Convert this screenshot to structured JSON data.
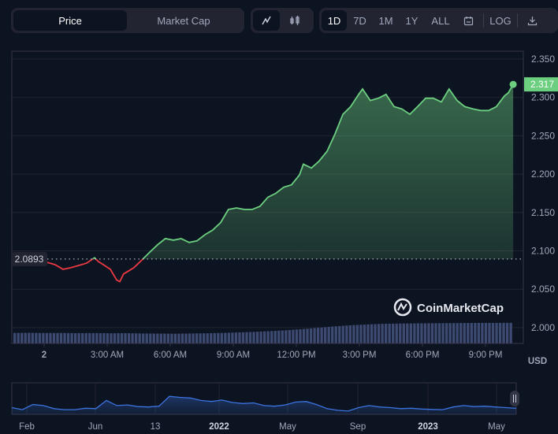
{
  "toolbar": {
    "type_tabs": [
      {
        "label": "Price",
        "active": true
      },
      {
        "label": "Market Cap",
        "active": false
      }
    ],
    "chart_style": [
      {
        "icon": "line-chart-icon",
        "active": true
      },
      {
        "icon": "candlestick-icon",
        "active": false
      }
    ],
    "ranges": [
      {
        "label": "1D",
        "active": true
      },
      {
        "label": "7D"
      },
      {
        "label": "1M"
      },
      {
        "label": "1Y"
      },
      {
        "label": "ALL"
      }
    ],
    "calendar_icon": "calendar-icon",
    "log_label": "LOG",
    "download_icon": "download-icon"
  },
  "watermark": "CoinMarketCap",
  "currency": "USD",
  "colors": {
    "up": "#6ccf80",
    "down": "#ea3943",
    "volume": "#3d4a72",
    "navigator": "#3b73e0",
    "background": "#0d1421"
  },
  "chart_data": {
    "type": "line",
    "baseline": 2.0893,
    "baseline_label": "2.0893",
    "last_label": "2.317",
    "ylim": [
      1.98,
      2.36
    ],
    "yticks": [
      "2.350",
      "2.300",
      "2.250",
      "2.200",
      "2.150",
      "2.100",
      "2.050",
      "2.000"
    ],
    "xticks": [
      "2",
      "3:00 AM",
      "6:00 AM",
      "9:00 AM",
      "12:00 PM",
      "3:00 PM",
      "6:00 PM",
      "9:00 PM"
    ],
    "points": [
      [
        "22:34",
        2.083
      ],
      [
        "22:57",
        2.097
      ],
      [
        "23:24",
        2.088
      ],
      [
        "23:47",
        2.085
      ],
      [
        "00:09",
        2.085
      ],
      [
        "00:31",
        2.082
      ],
      [
        "00:54",
        2.076
      ],
      [
        "01:16",
        2.078
      ],
      [
        "01:39",
        2.081
      ],
      [
        "02:01",
        2.084
      ],
      [
        "02:24",
        2.091
      ],
      [
        "02:35",
        2.086
      ],
      [
        "02:46",
        2.083
      ],
      [
        "03:09",
        2.076
      ],
      [
        "03:27",
        2.062
      ],
      [
        "03:36",
        2.06
      ],
      [
        "03:47",
        2.07
      ],
      [
        "03:58",
        2.073
      ],
      [
        "04:16",
        2.078
      ],
      [
        "04:39",
        2.088
      ],
      [
        "05:01",
        2.098
      ],
      [
        "05:24",
        2.108
      ],
      [
        "05:46",
        2.116
      ],
      [
        "06:09",
        2.114
      ],
      [
        "06:31",
        2.116
      ],
      [
        "06:54",
        2.111
      ],
      [
        "07:16",
        2.113
      ],
      [
        "07:39",
        2.121
      ],
      [
        "08:01",
        2.127
      ],
      [
        "08:24",
        2.137
      ],
      [
        "08:46",
        2.154
      ],
      [
        "09:09",
        2.156
      ],
      [
        "09:31",
        2.154
      ],
      [
        "09:54",
        2.154
      ],
      [
        "10:16",
        2.158
      ],
      [
        "10:39",
        2.17
      ],
      [
        "11:01",
        2.175
      ],
      [
        "11:24",
        2.183
      ],
      [
        "11:46",
        2.186
      ],
      [
        "12:09",
        2.199
      ],
      [
        "12:20",
        2.213
      ],
      [
        "12:43",
        2.208
      ],
      [
        "13:05",
        2.217
      ],
      [
        "13:28",
        2.23
      ],
      [
        "13:50",
        2.252
      ],
      [
        "14:13",
        2.278
      ],
      [
        "14:35",
        2.288
      ],
      [
        "14:58",
        2.304
      ],
      [
        "15:09",
        2.311
      ],
      [
        "15:31",
        2.296
      ],
      [
        "15:54",
        2.299
      ],
      [
        "16:16",
        2.304
      ],
      [
        "16:39",
        2.288
      ],
      [
        "17:01",
        2.285
      ],
      [
        "17:24",
        2.278
      ],
      [
        "17:46",
        2.288
      ],
      [
        "18:09",
        2.299
      ],
      [
        "18:31",
        2.299
      ],
      [
        "18:54",
        2.294
      ],
      [
        "19:16",
        2.311
      ],
      [
        "19:39",
        2.296
      ],
      [
        "20:01",
        2.288
      ],
      [
        "20:24",
        2.285
      ],
      [
        "20:46",
        2.283
      ],
      [
        "21:09",
        2.283
      ],
      [
        "21:31",
        2.288
      ],
      [
        "21:54",
        2.302
      ],
      [
        "22:05",
        2.306
      ],
      [
        "22:19",
        2.317
      ]
    ],
    "volume_relative": [
      0.95,
      0.96,
      0.94,
      0.95,
      0.93,
      0.94,
      0.92,
      0.93,
      0.9,
      0.89,
      0.88,
      0.9,
      0.92,
      0.95,
      1.0,
      1.05,
      1.12,
      1.2,
      1.3,
      1.42,
      1.55,
      1.65,
      1.72,
      1.78,
      1.8,
      1.82,
      1.83,
      1.84,
      1.85,
      1.86,
      1.86,
      1.87
    ],
    "navigator": {
      "labels": [
        "Feb",
        "Jun",
        "13",
        "2022",
        "May",
        "Sep",
        "2023",
        "May"
      ],
      "bold_labels": [
        "2022",
        "2023"
      ],
      "values": [
        0.25,
        0.15,
        0.4,
        0.35,
        0.2,
        0.15,
        0.15,
        0.22,
        0.2,
        0.6,
        0.35,
        0.38,
        0.3,
        0.28,
        0.32,
        0.8,
        0.75,
        0.72,
        0.6,
        0.55,
        0.62,
        0.5,
        0.45,
        0.48,
        0.35,
        0.32,
        0.38,
        0.52,
        0.55,
        0.4,
        0.2,
        0.12,
        0.08,
        0.25,
        0.35,
        0.28,
        0.25,
        0.2,
        0.22,
        0.18,
        0.16,
        0.15,
        0.28,
        0.35,
        0.3,
        0.32,
        0.28,
        0.25,
        0.22
      ]
    }
  }
}
